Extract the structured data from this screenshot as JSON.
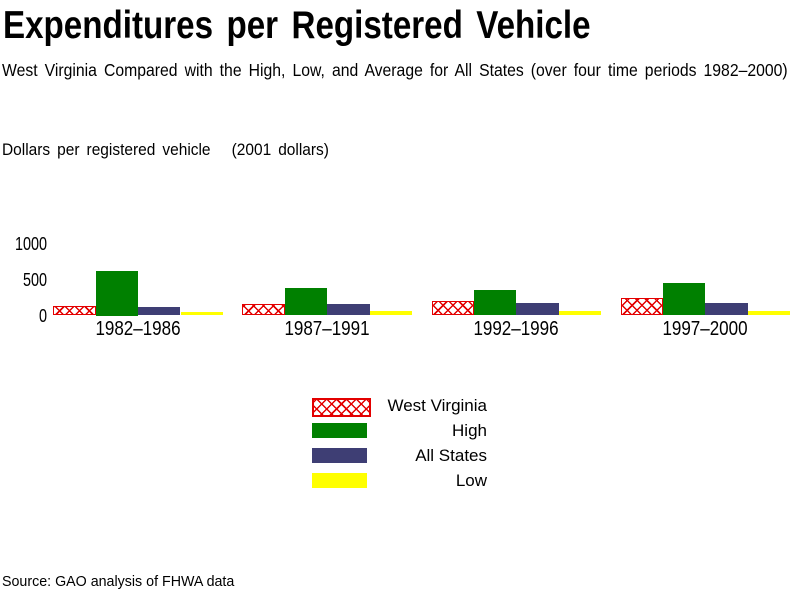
{
  "header": {
    "title": "Expenditures per Registered Vehicle",
    "subtitle": "West Virginia Compared with the High, Low, and Average for All States (over four time periods 1982–2000)"
  },
  "chart_data": {
    "type": "bar",
    "title": "Expenditures per Registered Vehicle",
    "subtitle": "West Virginia Compared with the High, Low, and Average for All States (over four time periods 1982–2000)",
    "axis_title": "Dollars per registered vehicle   (2001 dollars)",
    "categories": [
      "1982–1986",
      "1987–1991",
      "1992–1996",
      "1997–2000"
    ],
    "series": [
      {
        "name": "West Virginia",
        "style": "crosshatch",
        "color": "#e30000",
        "values": [
          135,
          160,
          205,
          240
        ]
      },
      {
        "name": "High",
        "style": "solid",
        "color": "#008000",
        "values": [
          625,
          390,
          355,
          455
        ]
      },
      {
        "name": "All States",
        "style": "solid",
        "color": "#3e3e74",
        "values": [
          115,
          160,
          170,
          175
        ]
      },
      {
        "name": "Low",
        "style": "solid",
        "color": "#ffff00",
        "values": [
          50,
          65,
          60,
          65
        ]
      }
    ],
    "yticks": [
      0,
      500,
      1000
    ],
    "ylim": [
      0,
      1100
    ],
    "xlabel": "",
    "ylabel": "Dollars per registered vehicle (2001 dollars)",
    "grid": false,
    "legend_position": "bottom-center"
  },
  "footer": {
    "source": "Source: GAO analysis of FHWA data"
  }
}
